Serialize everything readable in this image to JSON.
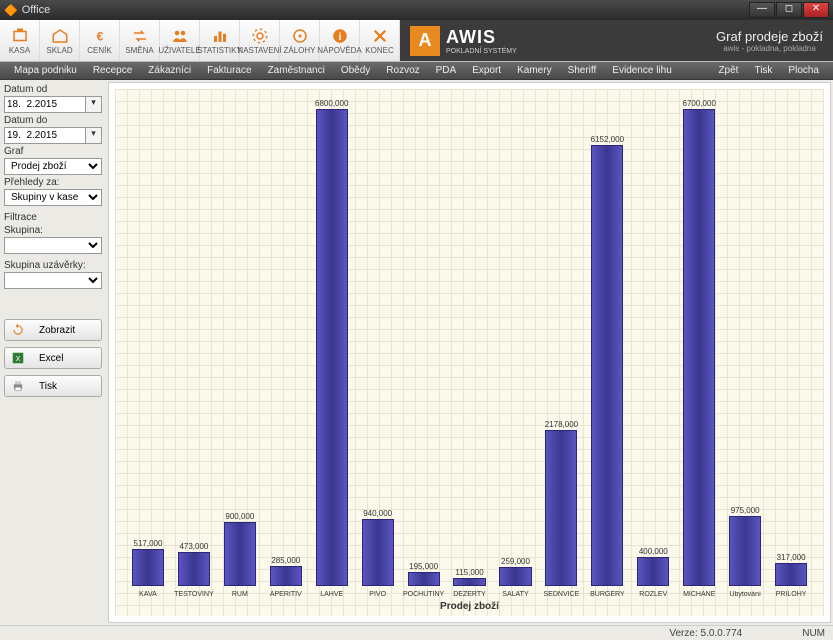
{
  "window": {
    "title": "Office"
  },
  "toolbar": [
    {
      "label": "KASA",
      "name": "kasa-button"
    },
    {
      "label": "SKLAD",
      "name": "sklad-button"
    },
    {
      "label": "CENÍK",
      "name": "cenik-button"
    },
    {
      "label": "SMĚNA",
      "name": "smena-button"
    },
    {
      "label": "UŽIVATELÉ",
      "name": "uzivatele-button"
    },
    {
      "label": "STATISTIKY",
      "name": "statistiky-button"
    },
    {
      "label": "NASTAVENÍ",
      "name": "nastaveni-button"
    },
    {
      "label": "ZÁLOHY",
      "name": "zalohy-button"
    },
    {
      "label": "NÁPOVĚDA",
      "name": "napoveda-button"
    },
    {
      "label": "KONEC",
      "name": "konec-button"
    }
  ],
  "brand": {
    "name": "AWIS",
    "sub": "POKLADNÍ SYSTÉMY",
    "right_title": "Graf prodeje zboží",
    "right_sub": "awis - pokladna, pokladna"
  },
  "menu": [
    "Mapa podniku",
    "Recepce",
    "Zákazníci",
    "Fakturace",
    "Zaměstnanci",
    "Obědy",
    "Rozvoz",
    "PDA",
    "Export",
    "Kamery",
    "Sheriff",
    "Evidence lihu"
  ],
  "menu_right": [
    "Zpět",
    "Tisk",
    "Plocha"
  ],
  "sidebar": {
    "datum_od_label": "Datum od",
    "datum_od": "18.  2.2015",
    "datum_do_label": "Datum do",
    "datum_do": "19.  2.2015",
    "graf_label": "Graf",
    "graf_value": "Prodej zboží",
    "prehledy_label": "Přehledy za:",
    "prehledy_value": "Skupiny v kase",
    "filtrace_label": "Filtrace",
    "skupina_label": "Skupina:",
    "skupina_value": "",
    "skupina_uz_label": "Skupina uzávěrky:",
    "skupina_uz_value": "",
    "btn_zobrazit": "Zobrazit",
    "btn_excel": "Excel",
    "btn_tisk": "Tisk"
  },
  "chart": {
    "type": "bar",
    "x_title": "Prodej zboží",
    "ymax": 6800,
    "background_color": "#fbf9ec",
    "grid_color": "#e8e4cf",
    "bar_gradient": [
      "#5a56c0",
      "#3a3690",
      "#5a56c0"
    ],
    "bar_border": "#2a267a",
    "value_fontsize": 8,
    "category_fontsize": 7,
    "categories": [
      "KAVA",
      "TĚSTOVINY",
      "RUM",
      "APERITIV",
      "LAHVE",
      "PIVO",
      "POCHUTINY",
      "DEZERTY",
      "SALATY",
      "SEDNVIČE",
      "BURGERY",
      "ROZLEV",
      "MICHANE",
      "Ubytování",
      "PŘÍLOHY"
    ],
    "values": [
      517000,
      473000,
      900000,
      285000,
      6800000,
      940000,
      195000,
      115000,
      259000,
      2178000,
      6152000,
      400000,
      6700000,
      975000,
      317000
    ],
    "value_labels": [
      "517,000",
      "473,000",
      "900,000",
      "285,000",
      "6800,000",
      "940,000",
      "195,000",
      "115,000",
      "259,000",
      "2178,000",
      "6152,000",
      "400,000",
      "6700,000",
      "975,000",
      "317,000"
    ]
  },
  "status": {
    "version_label": "Verze: 5.0.0.774",
    "num": "NUM"
  }
}
